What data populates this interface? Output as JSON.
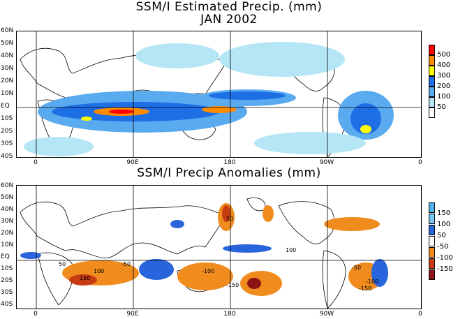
{
  "panel1": {
    "title_line1": "SSM/I Estimated Precip. (mm)",
    "title_line2": "JAN 2002",
    "legend": [
      {
        "label": "500",
        "color": "#ff0000"
      },
      {
        "label": "400",
        "color": "#ff8c00"
      },
      {
        "label": "300",
        "color": "#ffff00"
      },
      {
        "label": "200",
        "color": "#1e6ee6"
      },
      {
        "label": "100",
        "color": "#5aaaf0"
      },
      {
        "label": "50",
        "color": "#b4e6f5"
      },
      {
        "label": "",
        "color": "#ffffff"
      }
    ]
  },
  "panel2": {
    "title": "SSM/I Precip Anomalies (mm)",
    "legend": [
      {
        "label": "150",
        "color": "#50b4f0"
      },
      {
        "label": "100",
        "color": "#78c8f5"
      },
      {
        "label": "50",
        "color": "#2864dc"
      },
      {
        "label": "-50",
        "color": "#ffffff"
      },
      {
        "label": "-100",
        "color": "#f08c1e"
      },
      {
        "label": "-150",
        "color": "#c83c14"
      },
      {
        "label": "",
        "color": "#8c1414"
      }
    ]
  },
  "lat_ticks": [
    "60N",
    "50N",
    "40N",
    "30N",
    "20N",
    "10N",
    "EQ",
    "10S",
    "20S",
    "30S",
    "40S"
  ],
  "lon_ticks": [
    "0",
    "90E",
    "180",
    "90W",
    "0"
  ],
  "contour_labels": [
    "50",
    "100",
    "150",
    "-50",
    "-100",
    "-150",
    "50",
    "100",
    "-50",
    "-100",
    "-150"
  ]
}
